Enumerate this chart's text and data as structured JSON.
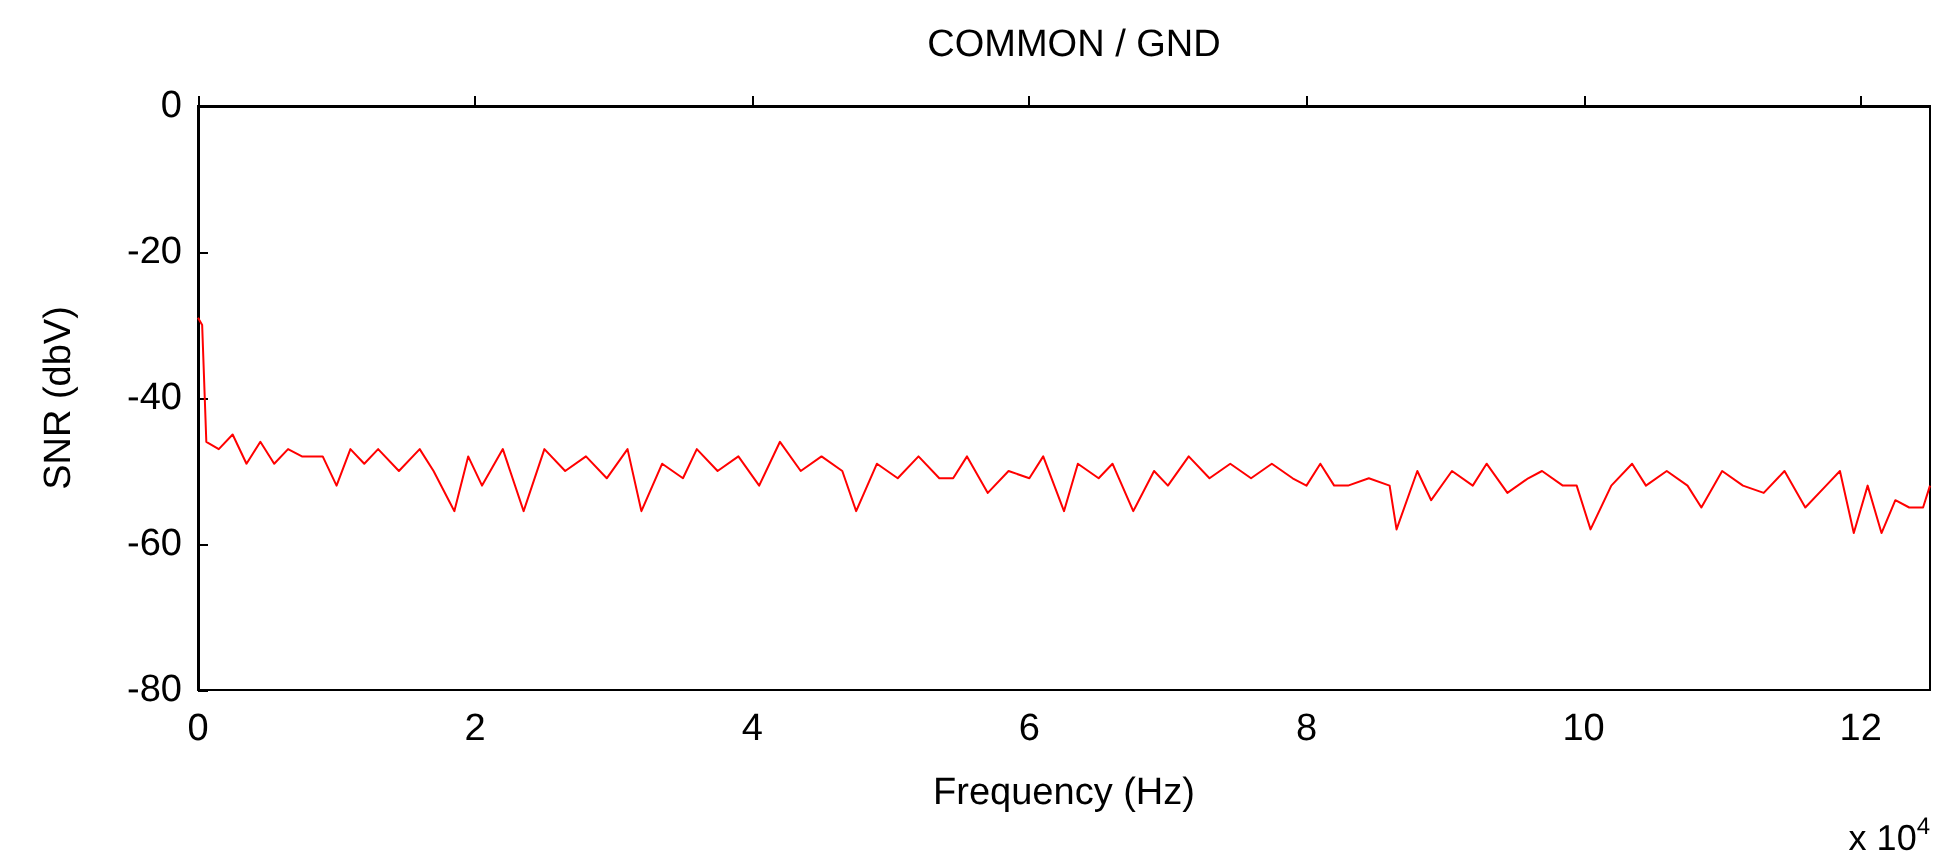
{
  "chart_data": {
    "type": "line",
    "title": "COMMON / GND",
    "xlabel": "Frequency (Hz)",
    "ylabel": "SNR (dbV)",
    "annotations": [
      "x 10$^{4}$"
    ],
    "xlim": [
      0,
      12.5
    ],
    "xticks": [
      0,
      2,
      4,
      6,
      8,
      10,
      12
    ],
    "ylim": [
      -80,
      0
    ],
    "yticks": [
      -80,
      -60,
      -40,
      -20,
      0
    ],
    "marker": "none",
    "line_style": "solid",
    "series": [
      {
        "color": "#ff0000",
        "x": [
          0,
          0.03,
          0.06,
          0.15,
          0.25,
          0.35,
          0.45,
          0.55,
          0.65,
          0.75,
          0.9,
          1.0,
          1.1,
          1.2,
          1.3,
          1.45,
          1.6,
          1.7,
          1.85,
          1.95,
          2.05,
          2.2,
          2.35,
          2.5,
          2.65,
          2.8,
          2.95,
          3.1,
          3.2,
          3.35,
          3.5,
          3.6,
          3.75,
          3.9,
          4.05,
          4.2,
          4.35,
          4.5,
          4.65,
          4.75,
          4.9,
          5.05,
          5.2,
          5.35,
          5.45,
          5.55,
          5.7,
          5.85,
          6.0,
          6.1,
          6.25,
          6.35,
          6.5,
          6.6,
          6.75,
          6.9,
          7.0,
          7.15,
          7.3,
          7.45,
          7.6,
          7.75,
          7.9,
          8.0,
          8.1,
          8.2,
          8.3,
          8.45,
          8.6,
          8.65,
          8.8,
          8.9,
          9.05,
          9.2,
          9.3,
          9.45,
          9.6,
          9.7,
          9.85,
          9.95,
          10.05,
          10.2,
          10.35,
          10.45,
          10.6,
          10.75,
          10.85,
          11.0,
          11.15,
          11.3,
          11.45,
          11.6,
          11.75,
          11.85,
          11.95,
          12.05,
          12.15,
          12.25,
          12.35,
          12.45,
          12.5
        ],
        "values": [
          -29,
          -30,
          -46,
          -47,
          -45,
          -49,
          -46,
          -49,
          -47,
          -48,
          -48,
          -52,
          -47,
          -49,
          -47,
          -50,
          -47,
          -50,
          -55.5,
          -48,
          -52,
          -47,
          -55.5,
          -47,
          -50,
          -48,
          -51,
          -47,
          -55.5,
          -49,
          -51,
          -47,
          -50,
          -48,
          -52,
          -46,
          -50,
          -48,
          -50,
          -55.5,
          -49,
          -51,
          -48,
          -51,
          -51,
          -48,
          -53,
          -50,
          -51,
          -48,
          -55.5,
          -49,
          -51,
          -49,
          -55.5,
          -50,
          -52,
          -48,
          -51,
          -49,
          -51,
          -49,
          -51,
          -52,
          -49,
          -52,
          -52,
          -51,
          -52,
          -58,
          -50,
          -54,
          -50,
          -52,
          -49,
          -53,
          -51,
          -50,
          -52,
          -52,
          -58,
          -52,
          -49,
          -52,
          -50,
          -52,
          -55,
          -50,
          -52,
          -53,
          -50,
          -55,
          -52,
          -50,
          -58.5,
          -52,
          -58.5,
          -54,
          -55,
          -55,
          -52
        ]
      }
    ]
  }
}
